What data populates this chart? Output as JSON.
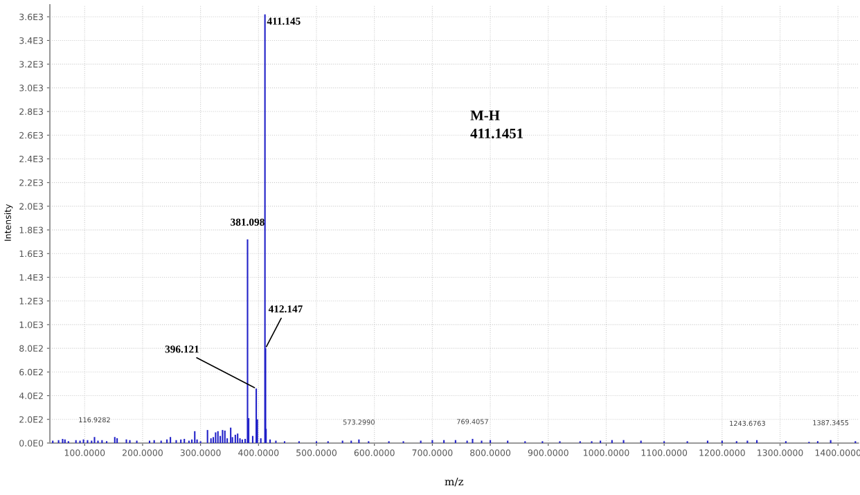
{
  "chart_data": {
    "type": "bar",
    "xlabel": "m/z",
    "ylabel": "Intensity",
    "x": [
      45,
      55,
      62,
      66,
      72,
      85,
      92,
      98,
      105,
      112,
      117,
      123,
      130,
      138,
      152,
      156,
      172,
      178,
      190,
      212,
      220,
      232,
      242,
      248,
      258,
      266,
      272,
      280,
      285,
      290,
      294,
      300,
      312,
      318,
      322,
      326,
      330,
      334,
      338,
      342,
      346,
      352,
      355,
      360,
      364,
      368,
      372,
      377,
      381.098,
      383,
      390,
      396.121,
      398,
      404,
      411.145,
      412.147,
      413,
      420,
      430,
      445,
      470,
      500,
      520,
      545,
      560,
      573.299,
      590,
      625,
      650,
      680,
      700,
      720,
      740,
      760,
      769.4057,
      785,
      800,
      830,
      860,
      890,
      920,
      955,
      975,
      990,
      1010,
      1030,
      1060,
      1100,
      1140,
      1175,
      1200,
      1225,
      1243.6763,
      1260,
      1310,
      1350,
      1365,
      1387.3455,
      1430
    ],
    "series": [
      {
        "color": "#2020c8",
        "values": [
          20,
          25,
          35,
          30,
          15,
          25,
          20,
          30,
          25,
          20,
          50,
          20,
          25,
          15,
          50,
          40,
          30,
          25,
          20,
          20,
          25,
          20,
          30,
          50,
          25,
          30,
          35,
          20,
          30,
          100,
          30,
          15,
          110,
          40,
          50,
          90,
          100,
          60,
          110,
          105,
          40,
          130,
          50,
          70,
          80,
          40,
          30,
          35,
          1720,
          210,
          60,
          460,
          200,
          40,
          3620,
          800,
          120,
          30,
          20,
          15,
          15,
          15,
          15,
          20,
          20,
          30,
          15,
          15,
          15,
          20,
          25,
          25,
          25,
          20,
          35,
          20,
          25,
          20,
          15,
          15,
          15,
          15,
          15,
          20,
          25,
          25,
          20,
          15,
          15,
          20,
          20,
          15,
          20,
          25,
          15,
          10,
          15,
          25,
          15
        ]
      }
    ],
    "annotations": [
      {
        "text": "411.145",
        "x": 411.145,
        "y": 3620
      },
      {
        "text": "381.098",
        "x": 381.098,
        "y": 1720
      },
      {
        "text": "396.121",
        "x": 396.121,
        "y": 460
      },
      {
        "text": "412.147",
        "x": 412.147,
        "y": 800
      },
      {
        "text": "116.9282",
        "x": 117,
        "y": 50
      },
      {
        "text": "573.2990",
        "x": 573.299,
        "y": 30
      },
      {
        "text": "769.4057",
        "x": 769.4057,
        "y": 35
      },
      {
        "text": "1243.6763",
        "x": 1243.6763,
        "y": 20
      },
      {
        "text": "1387.3455",
        "x": 1387.3455,
        "y": 25
      },
      "M-H\n411.1451"
    ],
    "xlim": [
      40,
      1435
    ],
    "xticks": [
      {
        "value": 100,
        "label": "100.0000"
      },
      {
        "value": 200,
        "label": "200.0000"
      },
      {
        "value": 300,
        "label": "300.0000"
      },
      {
        "value": 400,
        "label": "400.0000"
      },
      {
        "value": 500,
        "label": "500.0000"
      },
      {
        "value": 600,
        "label": "600.0000"
      },
      {
        "value": 700,
        "label": "700.0000"
      },
      {
        "value": 800,
        "label": "800.0000"
      },
      {
        "value": 900,
        "label": "900.0000"
      },
      {
        "value": 1000,
        "label": "1000.0000"
      },
      {
        "value": 1100,
        "label": "1100.0000"
      },
      {
        "value": 1200,
        "label": "1200.0000"
      },
      {
        "value": 1300,
        "label": "1300.0000"
      },
      {
        "value": 1400,
        "label": "1400.0000"
      }
    ],
    "ylim": [
      0,
      3700
    ],
    "yticks": [
      {
        "value": 0,
        "label": "0.0E0"
      },
      {
        "value": 200,
        "label": "2.0E2"
      },
      {
        "value": 400,
        "label": "4.0E2"
      },
      {
        "value": 600,
        "label": "6.0E2"
      },
      {
        "value": 800,
        "label": "8.0E2"
      },
      {
        "value": 1000,
        "label": "1.0E3"
      },
      {
        "value": 1200,
        "label": "1.2E3"
      },
      {
        "value": 1400,
        "label": "1.4E3"
      },
      {
        "value": 1600,
        "label": "1.6E3"
      },
      {
        "value": 1800,
        "label": "1.8E3"
      },
      {
        "value": 2000,
        "label": "2.0E3"
      },
      {
        "value": 2200,
        "label": "2.2E3"
      },
      {
        "value": 2400,
        "label": "2.4E3"
      },
      {
        "value": 2600,
        "label": "2.6E3"
      },
      {
        "value": 2800,
        "label": "2.8E3"
      },
      {
        "value": 3000,
        "label": "3.0E3"
      },
      {
        "value": 3200,
        "label": "3.2E3"
      },
      {
        "value": 3400,
        "label": "3.4E3"
      },
      {
        "value": 3600,
        "label": "3.6E3"
      }
    ],
    "grid": true
  }
}
